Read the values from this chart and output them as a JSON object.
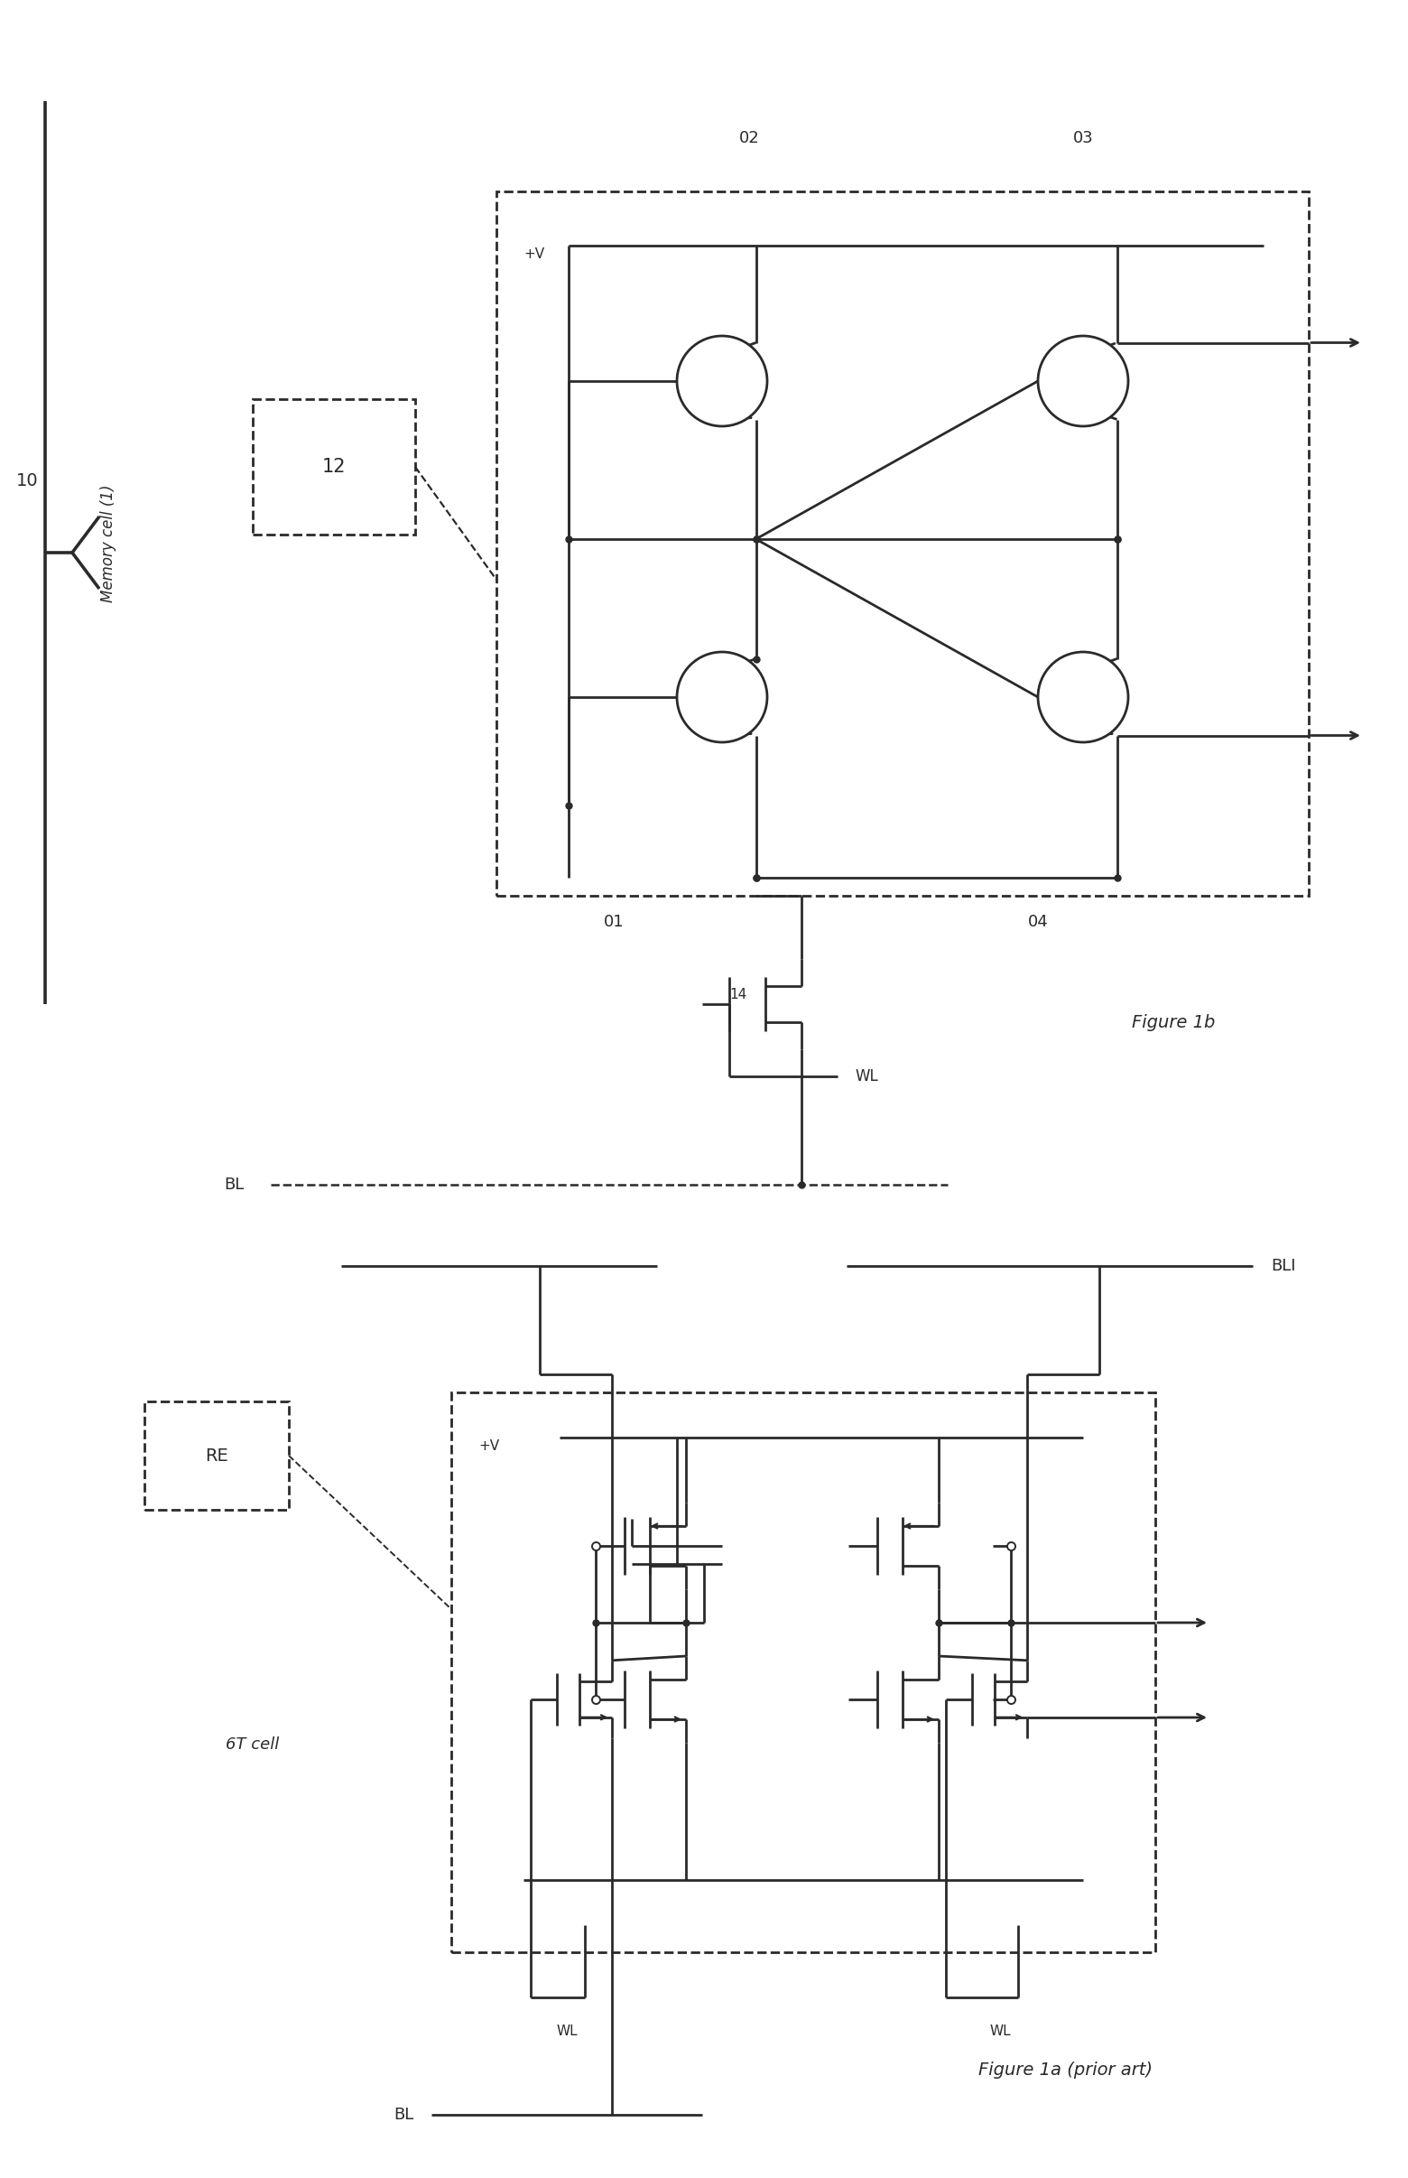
{
  "bg_color": "#ffffff",
  "line_color": "#2a2a2a",
  "line_width": 2.0,
  "dot_size": 5,
  "fig_width": 15.6,
  "fig_height": 24.12,
  "labels": {
    "fig1b": "Figure 1b",
    "fig1a": "Figure 1a (prior art)",
    "label_10": "10",
    "label_12": "12",
    "label_01": "01",
    "label_02": "02",
    "label_03": "03",
    "label_04": "04",
    "label_14": "14",
    "BL_1b": "BL",
    "WL_1b": "WL",
    "VCC_1b": "+V",
    "RE": "RE",
    "label_6T": "6T cell",
    "Memory": "Memory cell (1)",
    "BLI": "BLI",
    "WL_right": "WL",
    "WL_left": "WL",
    "BL_1a": "BL",
    "VCC_1a": "+V"
  }
}
